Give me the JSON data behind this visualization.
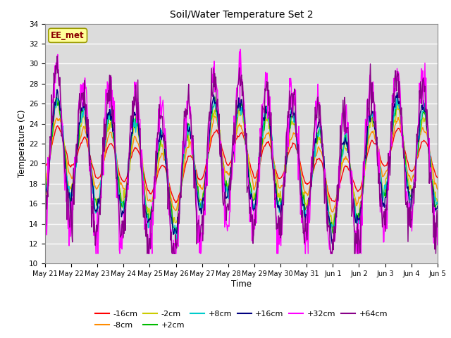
{
  "title": "Soil/Water Temperature Set 2",
  "xlabel": "Time",
  "ylabel": "Temperature (C)",
  "ylim": [
    10,
    34
  ],
  "yticks": [
    10,
    12,
    14,
    16,
    18,
    20,
    22,
    24,
    26,
    28,
    30,
    32,
    34
  ],
  "x_tick_labels": [
    "May 21",
    "May 22",
    "May 23",
    "May 24",
    "May 25",
    "May 26",
    "May 27",
    "May 28",
    "May 29",
    "May 30",
    "May 31",
    "Jun 1",
    "Jun 2",
    "Jun 3",
    "Jun 4",
    "Jun 5"
  ],
  "annotation_text": "EE_met",
  "annotation_color": "#8B0000",
  "annotation_bg": "#FFFF99",
  "bg_color": "#DCDCDC",
  "series": [
    {
      "label": "-16cm",
      "color": "#FF0000"
    },
    {
      "label": "-8cm",
      "color": "#FF8C00"
    },
    {
      "label": "-2cm",
      "color": "#CCCC00"
    },
    {
      "label": "+2cm",
      "color": "#00BB00"
    },
    {
      "label": "+8cm",
      "color": "#00CCCC"
    },
    {
      "label": "+16cm",
      "color": "#000080"
    },
    {
      "label": "+32cm",
      "color": "#FF00FF"
    },
    {
      "label": "+64cm",
      "color": "#880088"
    }
  ]
}
